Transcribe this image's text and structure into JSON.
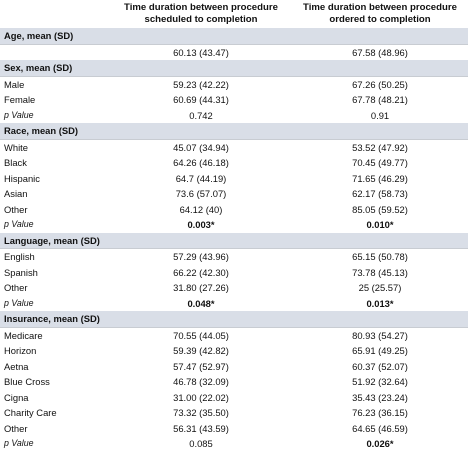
{
  "header": {
    "col1": "Time duration between procedure scheduled to completion",
    "col2": "Time duration between procedure ordered to completion"
  },
  "sections": [
    {
      "title": "Age, mean (SD)",
      "rows": [
        {
          "label": "",
          "v1": "60.13 (43.47)",
          "v2": "67.58 (48.96)"
        }
      ]
    },
    {
      "title": "Sex, mean (SD)",
      "rows": [
        {
          "label": "Male",
          "v1": "59.23 (42.22)",
          "v2": "67.26 (50.25)"
        },
        {
          "label": "Female",
          "v1": "60.69 (44.31)",
          "v2": "67.78 (48.21)"
        },
        {
          "label": "p Value",
          "v1": "0.742",
          "v2": "0.91",
          "p": true
        }
      ]
    },
    {
      "title": "Race, mean (SD)",
      "rows": [
        {
          "label": "White",
          "v1": "45.07 (34.94)",
          "v2": "53.52 (47.92)"
        },
        {
          "label": "Black",
          "v1": "64.26 (46.18)",
          "v2": "70.45 (49.77)"
        },
        {
          "label": "Hispanic",
          "v1": "64.7 (44.19)",
          "v2": "71.65 (46.29)"
        },
        {
          "label": "Asian",
          "v1": "73.6 (57.07)",
          "v2": "62.17 (58.73)"
        },
        {
          "label": "Other",
          "v1": "64.12 (40)",
          "v2": "85.05 (59.52)"
        },
        {
          "label": "p Value",
          "v1": "0.003*",
          "v2": "0.010*",
          "p": true,
          "b1": true,
          "b2": true
        }
      ]
    },
    {
      "title": "Language, mean (SD)",
      "rows": [
        {
          "label": "English",
          "v1": "57.29 (43.96)",
          "v2": "65.15 (50.78)"
        },
        {
          "label": "Spanish",
          "v1": "66.22 (42.30)",
          "v2": "73.78 (45.13)"
        },
        {
          "label": "Other",
          "v1": "31.80 (27.26)",
          "v2": "25 (25.57)"
        },
        {
          "label": "p Value",
          "v1": "0.048*",
          "v2": "0.013*",
          "p": true,
          "b1": true,
          "b2": true
        }
      ]
    },
    {
      "title": "Insurance, mean (SD)",
      "rows": [
        {
          "label": "Medicare",
          "v1": "70.55 (44.05)",
          "v2": "80.93 (54.27)"
        },
        {
          "label": "Horizon",
          "v1": "59.39 (42.82)",
          "v2": "65.91 (49.25)"
        },
        {
          "label": "Aetna",
          "v1": "57.47 (52.97)",
          "v2": "60.37 (52.07)"
        },
        {
          "label": "Blue Cross",
          "v1": "46.78 (32.09)",
          "v2": "51.92 (32.64)"
        },
        {
          "label": "Cigna",
          "v1": "31.00 (22.02)",
          "v2": "35.43 (23.24)"
        },
        {
          "label": "Charity Care",
          "v1": "73.32 (35.50)",
          "v2": "76.23 (36.15)"
        },
        {
          "label": "Other",
          "v1": "56.31 (43.59)",
          "v2": "64.65 (46.59)"
        },
        {
          "label": "p Value",
          "v1": "0.085",
          "v2": "0.026*",
          "p": true,
          "b2": true
        }
      ]
    }
  ]
}
